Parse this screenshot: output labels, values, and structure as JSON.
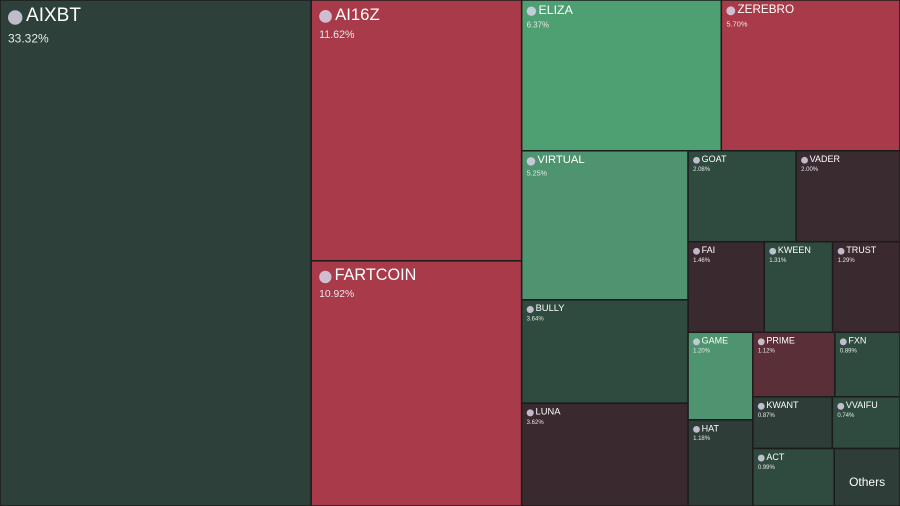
{
  "chart_data": {
    "type": "treemap",
    "categories": [
      "AIXBT",
      "AI16Z",
      "FARTCOIN",
      "ELIZA",
      "ZEREBRO",
      "VIRTUAL",
      "GOAT",
      "VADER",
      "FAI",
      "KWEEN",
      "TRUST",
      "BULLY",
      "LUNA",
      "GAME",
      "PRIME",
      "FXN",
      "KWANT",
      "VVAIFU",
      "HAT",
      "ACT",
      "Others"
    ],
    "values": [
      33.32,
      11.62,
      10.92,
      6.37,
      5.7,
      5.25,
      2.08,
      2.0,
      1.46,
      1.31,
      1.29,
      3.64,
      3.62,
      1.2,
      1.12,
      0.89,
      0.87,
      0.74,
      1.18,
      0.99,
      0.8
    ],
    "value_labels": [
      "33.32%",
      "11.62%",
      "10.92%",
      "6.37%",
      "5.70%",
      "5.25%",
      "2.08%",
      "2.00%",
      "1.46%",
      "1.31%",
      "1.29%",
      "3.64%",
      "3.62%",
      "1.20%",
      "1.12%",
      "0.89%",
      "0.87%",
      "0.74%",
      "1.18%",
      "0.99%",
      null
    ],
    "colors": [
      "#2d4039",
      "#a83a49",
      "#a83a49",
      "#4e9f72",
      "#a83a49",
      "#4e9470",
      "#2f4a3e",
      "#3a2b30",
      "#3a2a30",
      "#2f4a3e",
      "#3a2a30",
      "#2f4a3e",
      "#3a2a30",
      "#4e9470",
      "#5a2f38",
      "#2f4a3e",
      "#2e3d37",
      "#2f4a3e",
      "#2e3d37",
      "#2f4a3e",
      "#2e3d37"
    ]
  }
}
